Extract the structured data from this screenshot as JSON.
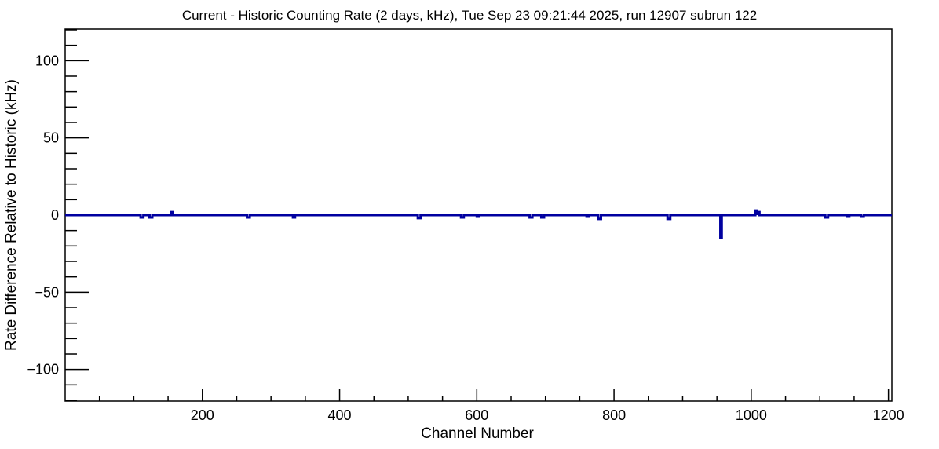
{
  "window": {
    "background": "#ffffff"
  },
  "chart_data": {
    "type": "line",
    "title": "Current - Historic Counting Rate (2 days, kHz), Tue Sep 23 09:21:44 2025, run 12907 subrun 122",
    "xlabel": "Channel Number",
    "ylabel": "Rate Difference Relative to Historic (kHz)",
    "xlim": [
      0,
      1205
    ],
    "ylim": [
      -120.5,
      120.5
    ],
    "x_major_ticks": [
      200,
      400,
      600,
      800,
      1000,
      1200
    ],
    "x_minor_step": 50,
    "y_major_ticks": [
      -100,
      -50,
      0,
      50,
      100
    ],
    "y_minor_step": 10,
    "grid": false,
    "legend": "none",
    "line_color": "#0000a0",
    "baseline_value": 0,
    "series": [
      {
        "name": "rate-difference-vs-channel",
        "baseline": 0,
        "deviations_note": "triplets of [channel, value_kHz, width_channels]; line is flat at baseline elsewhere",
        "deviations": [
          [
            110,
            -1.5,
            4
          ],
          [
            123,
            -1.5,
            4
          ],
          [
            154,
            2,
            3
          ],
          [
            265,
            -1.5,
            4
          ],
          [
            332,
            -1.5,
            3
          ],
          [
            514,
            -2,
            4
          ],
          [
            577,
            -1.5,
            4
          ],
          [
            600,
            -1,
            3
          ],
          [
            677,
            -1.5,
            4
          ],
          [
            694,
            -1.5,
            4
          ],
          [
            760,
            -1,
            3
          ],
          [
            777,
            -2.5,
            4
          ],
          [
            878,
            -2.5,
            4
          ],
          [
            955,
            -14.5,
            2
          ],
          [
            1006,
            3,
            2
          ],
          [
            1008,
            2,
            4
          ],
          [
            1108,
            -1.5,
            4
          ],
          [
            1140,
            -1,
            3
          ],
          [
            1160,
            -1,
            4
          ]
        ]
      }
    ]
  }
}
